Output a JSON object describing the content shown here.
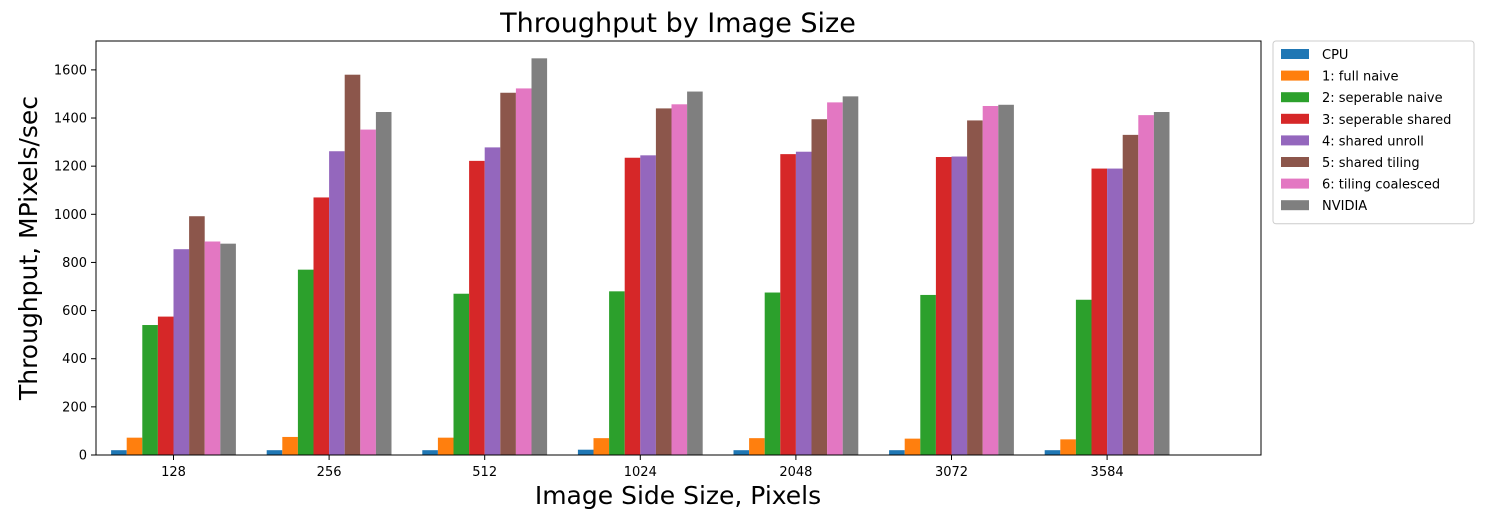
{
  "chart_data": {
    "type": "bar",
    "title": "Throughput by Image Size",
    "xlabel": "Image Side Size, Pixels",
    "ylabel": "Throughput, MPixels/sec",
    "ylim": [
      0,
      1720
    ],
    "yticks": [
      "0",
      "200",
      "400",
      "600",
      "800",
      "1000",
      "1200",
      "1400",
      "1600"
    ],
    "grid": false,
    "legend_position": "right (outside plot, top)",
    "categories": [
      "128",
      "256",
      "512",
      "1024",
      "2048",
      "3072",
      "3584"
    ],
    "series": [
      {
        "name": "CPU",
        "color": "#1f77b4",
        "values": [
          20,
          20,
          20,
          22,
          20,
          20,
          20
        ]
      },
      {
        "name": "1: full naive",
        "color": "#ff7f0e",
        "values": [
          72,
          75,
          72,
          70,
          70,
          68,
          65
        ]
      },
      {
        "name": "2: seperable naive",
        "color": "#2ca02c",
        "values": [
          540,
          770,
          670,
          680,
          675,
          665,
          645
        ]
      },
      {
        "name": "3: seperable shared",
        "color": "#d62728",
        "values": [
          575,
          1070,
          1222,
          1235,
          1250,
          1238,
          1190
        ]
      },
      {
        "name": "4: shared unroll",
        "color": "#9467bd",
        "values": [
          855,
          1262,
          1278,
          1245,
          1260,
          1240,
          1190
        ]
      },
      {
        "name": "5: shared tiling",
        "color": "#8c564b",
        "values": [
          992,
          1580,
          1505,
          1440,
          1395,
          1390,
          1330
        ]
      },
      {
        "name": "6: tiling coalesced",
        "color": "#e377c2",
        "values": [
          887,
          1352,
          1523,
          1457,
          1465,
          1450,
          1412
        ]
      },
      {
        "name": "NVIDIA",
        "color": "#7f7f7f",
        "values": [
          878,
          1425,
          1648,
          1510,
          1490,
          1455,
          1425
        ]
      }
    ]
  }
}
